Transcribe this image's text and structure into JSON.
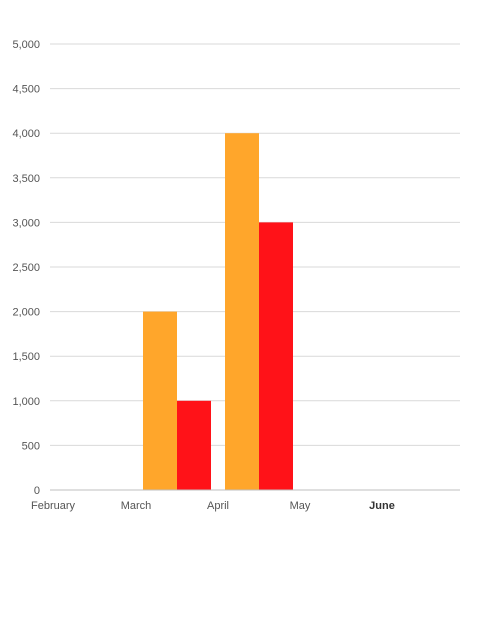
{
  "chart_data": {
    "type": "bar",
    "x_ticks": [
      "February",
      "March",
      "April",
      "May",
      "June"
    ],
    "x_ticks_bold": [
      false,
      false,
      false,
      false,
      true
    ],
    "ylim": [
      0,
      5000
    ],
    "y_ticks": [
      0,
      500,
      1000,
      1500,
      2000,
      2500,
      3000,
      3500,
      4000,
      4500,
      5000
    ],
    "y_tick_labels": [
      "0",
      "500",
      "1,000",
      "1,500",
      "2,000",
      "2,500",
      "3,000",
      "3,500",
      "4,000",
      "4,500",
      "5,000"
    ],
    "grid": true,
    "legend": "none",
    "series": [
      {
        "color": "#FFA62B",
        "points": [
          {
            "x": "March",
            "value": 2000
          },
          {
            "x": "April",
            "value": 4000
          }
        ]
      },
      {
        "color": "#FF1218",
        "points": [
          {
            "x": "March",
            "value": 1000
          },
          {
            "x": "April",
            "value": 3000
          }
        ]
      }
    ]
  }
}
